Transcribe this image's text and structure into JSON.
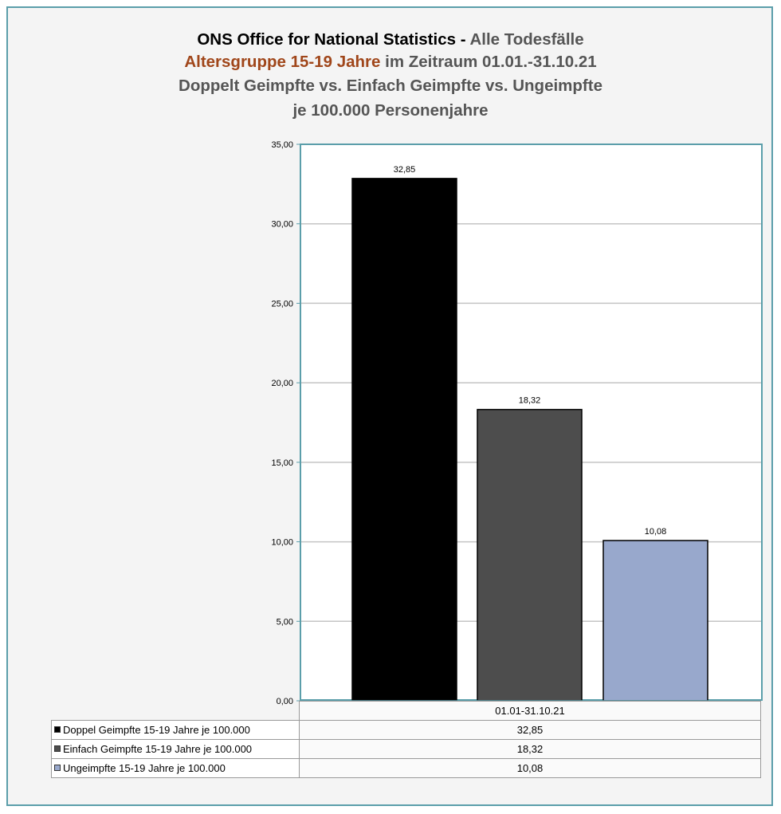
{
  "title": {
    "line1_part1": "ONS Office for National Statistics - ",
    "line1_part2": "Alle Todesfälle",
    "line2_part1": "Altersgruppe 15-19 Jahre",
    "line2_part2": " im Zeitraum 01.01.-31.10.21",
    "line3": "Doppelt Geimpfte vs. Einfach Geimpfte vs. Ungeimpfte",
    "line4": "je 100.000 Personenjahre"
  },
  "colors": {
    "title_black": "#000000",
    "title_grey": "#555555",
    "title_accent": "#a0461a",
    "frame_border": "#5b9eaa"
  },
  "chart_data": {
    "type": "bar",
    "categories": [
      "01.01-31.10.21"
    ],
    "series": [
      {
        "name": "Doppel Geimpfte 15-19 Jahre je 100.000",
        "values": [
          32.85
        ],
        "value_label": "32,85",
        "color": "#000000"
      },
      {
        "name": "Einfach Geimpfte 15-19 Jahre je 100.000",
        "values": [
          18.32
        ],
        "value_label": "18,32",
        "color": "#4d4d4d"
      },
      {
        "name": "Ungeimpfte 15-19 Jahre je 100.000",
        "values": [
          10.08
        ],
        "value_label": "10,08",
        "color": "#98a8cc"
      }
    ],
    "ylim": [
      0,
      35
    ],
    "yticks": [
      0,
      5,
      10,
      15,
      20,
      25,
      30,
      35
    ],
    "ytick_labels": [
      "0,00",
      "5,00",
      "10,00",
      "15,00",
      "20,00",
      "25,00",
      "30,00",
      "35,00"
    ],
    "grid": true,
    "legend": "data-table below chart"
  }
}
